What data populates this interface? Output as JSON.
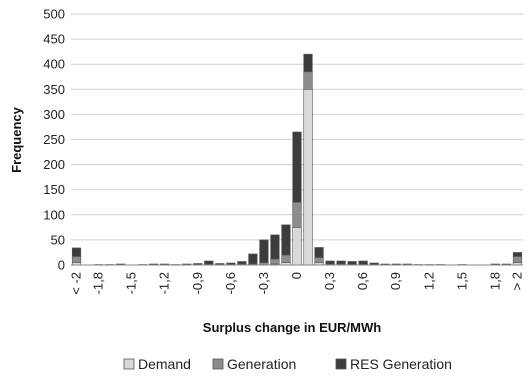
{
  "chart_data": {
    "type": "bar",
    "stacked": true,
    "xlabel": "Surplus change in EUR/MWh",
    "ylabel": "Frequency",
    "ylim": [
      0,
      500
    ],
    "yticks": [
      0,
      50,
      100,
      150,
      200,
      250,
      300,
      350,
      400,
      450,
      500
    ],
    "xtick_labels": [
      "< -2",
      "-1,8",
      "-1,5",
      "-1,2",
      "-0,9",
      "-0,6",
      "-0,3",
      "0",
      "0,3",
      "0,6",
      "0,9",
      "1,2",
      "1,5",
      "1,8",
      "> 2"
    ],
    "grid": "horizontal",
    "legend_position": "bottom",
    "categories": [
      "< -2",
      "-1,9",
      "-1,8",
      "-1,7",
      "-1,6",
      "-1,5",
      "-1,4",
      "-1,3",
      "-1,2",
      "-1,1",
      "-1,0",
      "-0,9",
      "-0,8",
      "-0,7",
      "-0,6",
      "-0,5",
      "-0,4",
      "-0,3",
      "-0,2",
      "-0,1",
      "0",
      "0,1",
      "0,2",
      "0,3",
      "0,4",
      "0,5",
      "0,6",
      "0,7",
      "0,8",
      "0,9",
      "1,0",
      "1,1",
      "1,2",
      "1,3",
      "1,4",
      "1,5",
      "1,6",
      "1,7",
      "1,8",
      "1,9",
      "> 2"
    ],
    "series": [
      {
        "name": "Demand",
        "color": "#d9d9d9",
        "values": [
          5,
          0,
          0,
          0,
          0,
          0,
          0,
          0,
          0,
          0,
          0,
          0,
          0,
          0,
          0,
          0,
          0,
          0,
          2,
          5,
          75,
          350,
          5,
          0,
          0,
          0,
          0,
          0,
          0,
          0,
          0,
          0,
          0,
          0,
          0,
          0,
          0,
          0,
          0,
          0,
          5
        ]
      },
      {
        "name": "Generation",
        "color": "#8c8c8c",
        "values": [
          12,
          0,
          0,
          0,
          0,
          0,
          0,
          0,
          0,
          0,
          0,
          0,
          1,
          1,
          1,
          2,
          2,
          5,
          10,
          15,
          50,
          35,
          10,
          2,
          2,
          1,
          1,
          0,
          0,
          0,
          0,
          0,
          0,
          0,
          0,
          0,
          0,
          0,
          0,
          0,
          12
        ]
      },
      {
        "name": "RES Generation",
        "color": "#3d3d3d",
        "values": [
          17,
          0,
          1,
          1,
          2,
          0,
          1,
          2,
          2,
          1,
          2,
          3,
          7,
          2,
          3,
          5,
          20,
          45,
          48,
          60,
          140,
          35,
          20,
          6,
          6,
          6,
          7,
          4,
          2,
          2,
          2,
          1,
          1,
          1,
          0,
          1,
          0,
          0,
          2,
          2,
          8
        ]
      }
    ]
  }
}
